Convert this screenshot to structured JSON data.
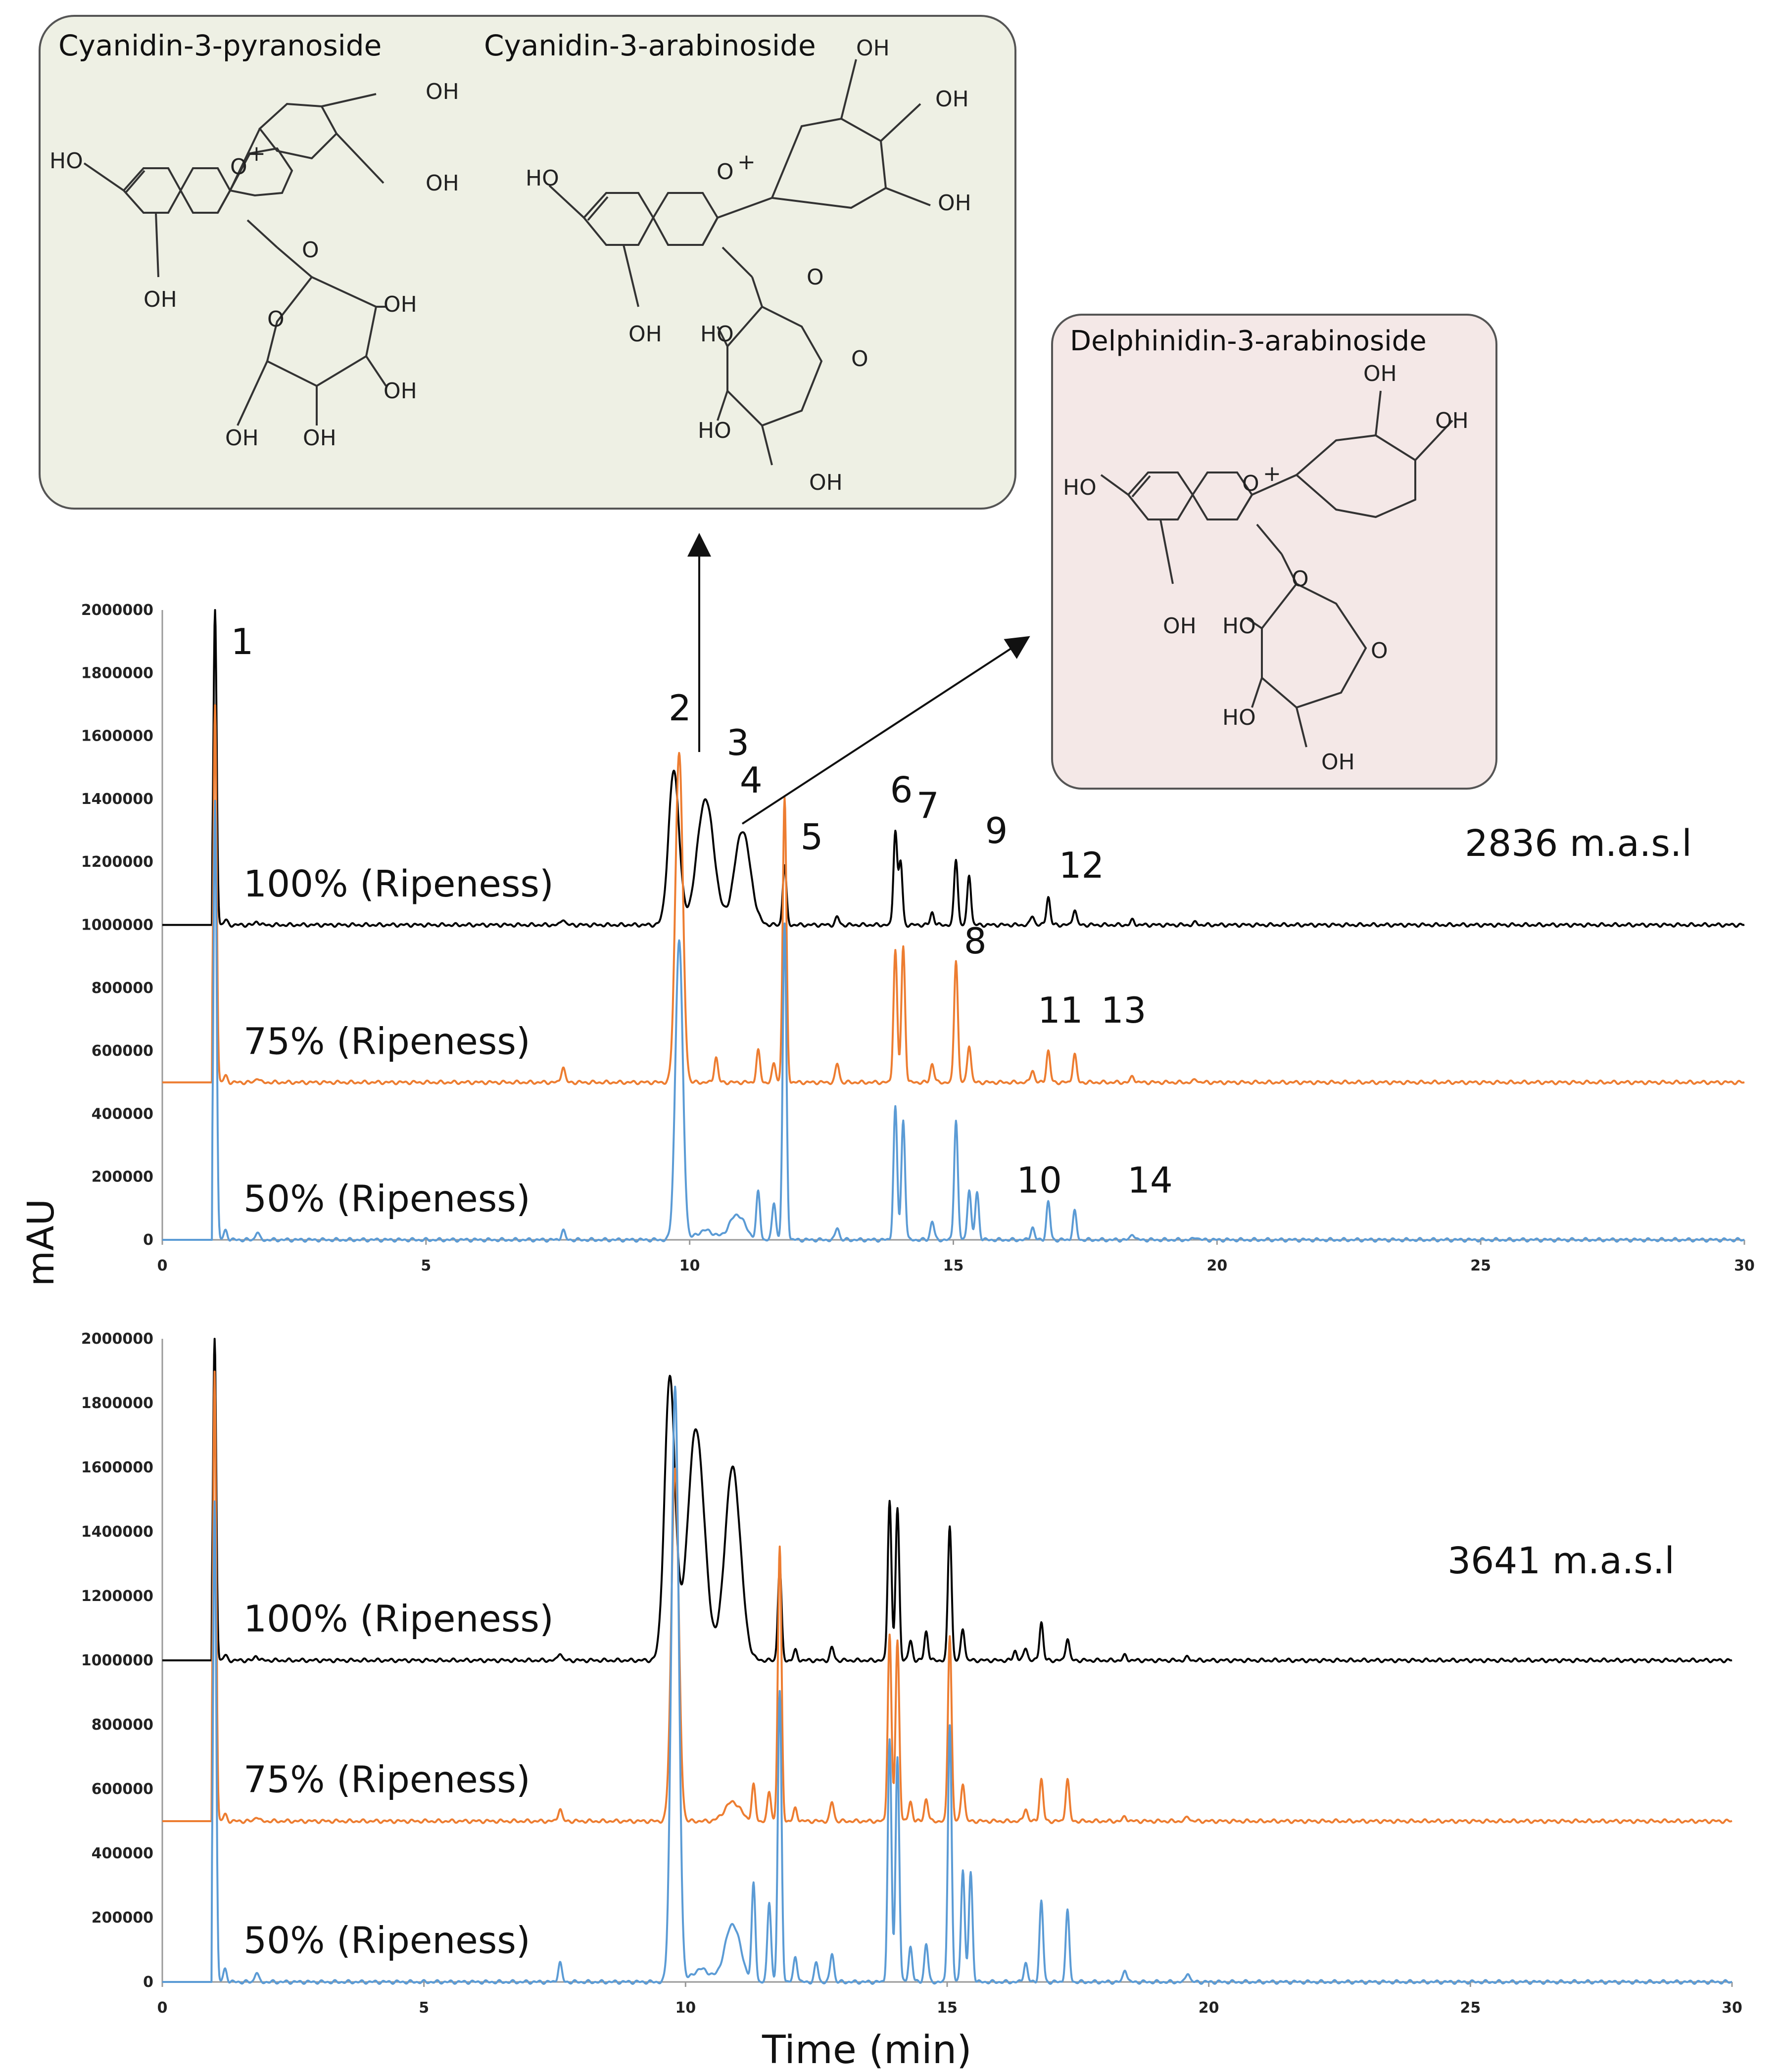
{
  "structures": {
    "cyanidin_pyranoside": "Cyanidin-3-pyranoside",
    "cyanidin_arabinoside": "Cyanidin-3-arabinoside",
    "delphinidin_arabinoside": "Delphinidin-3-arabinoside"
  },
  "atoms": {
    "oh": "OH",
    "ho": "HO",
    "o": "O",
    "plus": "+"
  },
  "colors": {
    "ripeness_100": "#000000",
    "ripeness_75": "#ED7D31",
    "ripeness_50": "#5B9BD5",
    "box_left": "#EEF0E4",
    "box_right": "#F4E8E7"
  },
  "chart_data": [
    {
      "type": "line",
      "title": "2836 m.a.s.l",
      "xlabel": "",
      "ylabel": "mAU",
      "xlim": [
        0,
        30
      ],
      "ylim": [
        0,
        2000000
      ],
      "xticks": [
        "0",
        "5",
        "10",
        "15",
        "20",
        "25",
        "30"
      ],
      "yticks": [
        "0",
        "200000",
        "400000",
        "600000",
        "800000",
        "1000000",
        "1200000",
        "1400000",
        "1600000",
        "1800000",
        "2000000"
      ],
      "series": [
        {
          "name": "100% (Ripeness)",
          "color": "#000000",
          "baseline": 1000000,
          "peaks": [
            [
              1.0,
              1000000
            ],
            [
              1.2,
              15000
            ],
            [
              1.8,
              12000
            ],
            [
              7.6,
              20000
            ],
            [
              9.7,
              490000
            ],
            [
              10.3,
              400000
            ],
            [
              11.0,
              300000
            ],
            [
              11.8,
              190000
            ],
            [
              12.8,
              25000
            ],
            [
              13.9,
              300000
            ],
            [
              14.0,
              200000
            ],
            [
              14.6,
              40000
            ],
            [
              15.05,
              210000
            ],
            [
              15.3,
              160000
            ],
            [
              16.5,
              30000
            ],
            [
              16.8,
              90000
            ],
            [
              17.3,
              50000
            ],
            [
              18.4,
              15000
            ],
            [
              19.6,
              8000
            ]
          ]
        },
        {
          "name": "75% (Ripeness)",
          "color": "#ED7D31",
          "baseline": 500000,
          "peaks": [
            [
              1.0,
              1200000
            ],
            [
              1.2,
              20000
            ],
            [
              1.8,
              15000
            ],
            [
              7.6,
              50000
            ],
            [
              9.8,
              1050000
            ],
            [
              10.5,
              80000
            ],
            [
              11.3,
              100000
            ],
            [
              11.6,
              60000
            ],
            [
              11.8,
              900000
            ],
            [
              12.8,
              60000
            ],
            [
              13.9,
              420000
            ],
            [
              14.05,
              430000
            ],
            [
              14.6,
              60000
            ],
            [
              15.05,
              390000
            ],
            [
              15.3,
              120000
            ],
            [
              16.5,
              40000
            ],
            [
              16.8,
              100000
            ],
            [
              17.3,
              90000
            ],
            [
              18.4,
              20000
            ],
            [
              19.6,
              10000
            ]
          ]
        },
        {
          "name": "50% (Ripeness)",
          "color": "#5B9BD5",
          "baseline": 0,
          "peaks": [
            [
              1.0,
              1400000
            ],
            [
              1.2,
              30000
            ],
            [
              1.8,
              25000
            ],
            [
              7.6,
              30000
            ],
            [
              9.8,
              950000
            ],
            [
              10.3,
              30000
            ],
            [
              10.9,
              80000
            ],
            [
              11.3,
              150000
            ],
            [
              11.6,
              120000
            ],
            [
              11.8,
              1000000
            ],
            [
              12.8,
              40000
            ],
            [
              13.9,
              420000
            ],
            [
              14.05,
              380000
            ],
            [
              14.6,
              60000
            ],
            [
              15.05,
              380000
            ],
            [
              15.3,
              160000
            ],
            [
              15.45,
              150000
            ],
            [
              16.5,
              40000
            ],
            [
              16.8,
              120000
            ],
            [
              17.3,
              90000
            ],
            [
              18.4,
              20000
            ],
            [
              19.6,
              10000
            ]
          ]
        }
      ],
      "peak_labels": [
        {
          "text": "1",
          "x": 1.3,
          "y": 1860000
        },
        {
          "text": "2",
          "x": 9.6,
          "y": 1650000
        },
        {
          "text": "3",
          "x": 10.7,
          "y": 1540000
        },
        {
          "text": "4",
          "x": 10.95,
          "y": 1420000
        },
        {
          "text": "5",
          "x": 12.1,
          "y": 1240000
        },
        {
          "text": "6",
          "x": 13.8,
          "y": 1390000
        },
        {
          "text": "7",
          "x": 14.3,
          "y": 1340000
        },
        {
          "text": "8",
          "x": 15.2,
          "y": 910000
        },
        {
          "text": "9",
          "x": 15.6,
          "y": 1260000
        },
        {
          "text": "10",
          "x": 16.2,
          "y": 150000
        },
        {
          "text": "11",
          "x": 16.6,
          "y": 690000
        },
        {
          "text": "12",
          "x": 17.0,
          "y": 1150000
        },
        {
          "text": "13",
          "x": 17.8,
          "y": 690000
        },
        {
          "text": "14",
          "x": 18.3,
          "y": 150000
        }
      ]
    },
    {
      "type": "line",
      "title": "3641 m.a.s.l",
      "xlabel": "Time (min)",
      "ylabel": "",
      "xlim": [
        0,
        30
      ],
      "ylim": [
        0,
        2000000
      ],
      "xticks": [
        "0",
        "5",
        "10",
        "15",
        "20",
        "25",
        "30"
      ],
      "yticks": [
        "0",
        "200000",
        "400000",
        "600000",
        "800000",
        "1000000",
        "1200000",
        "1400000",
        "1600000",
        "1800000",
        "2000000"
      ],
      "series": [
        {
          "name": "100% (Ripeness)",
          "color": "#000000",
          "baseline": 1000000,
          "peaks": [
            [
              1.0,
              1000000
            ],
            [
              1.2,
              15000
            ],
            [
              1.8,
              15000
            ],
            [
              7.6,
              25000
            ],
            [
              9.7,
              880000
            ],
            [
              10.2,
              720000
            ],
            [
              10.9,
              600000
            ],
            [
              11.8,
              290000
            ],
            [
              12.1,
              30000
            ],
            [
              12.8,
              40000
            ],
            [
              13.9,
              500000
            ],
            [
              14.05,
              470000
            ],
            [
              14.3,
              60000
            ],
            [
              14.6,
              90000
            ],
            [
              15.05,
              420000
            ],
            [
              15.3,
              100000
            ],
            [
              16.3,
              30000
            ],
            [
              16.5,
              40000
            ],
            [
              16.8,
              120000
            ],
            [
              17.3,
              70000
            ],
            [
              18.4,
              15000
            ],
            [
              19.6,
              10000
            ]
          ]
        },
        {
          "name": "75% (Ripeness)",
          "color": "#ED7D31",
          "baseline": 500000,
          "peaks": [
            [
              1.0,
              1400000
            ],
            [
              1.2,
              20000
            ],
            [
              1.8,
              15000
            ],
            [
              7.6,
              40000
            ],
            [
              9.8,
              1100000
            ],
            [
              10.9,
              60000
            ],
            [
              11.3,
              110000
            ],
            [
              11.6,
              90000
            ],
            [
              11.8,
              850000
            ],
            [
              12.1,
              40000
            ],
            [
              12.8,
              60000
            ],
            [
              13.9,
              580000
            ],
            [
              14.05,
              560000
            ],
            [
              14.3,
              60000
            ],
            [
              14.6,
              70000
            ],
            [
              15.05,
              580000
            ],
            [
              15.3,
              120000
            ],
            [
              16.5,
              40000
            ],
            [
              16.8,
              130000
            ],
            [
              17.3,
              130000
            ],
            [
              18.4,
              15000
            ],
            [
              19.6,
              15000
            ]
          ]
        },
        {
          "name": "50% (Ripeness)",
          "color": "#5B9BD5",
          "baseline": 0,
          "peaks": [
            [
              1.0,
              1500000
            ],
            [
              1.2,
              40000
            ],
            [
              1.8,
              30000
            ],
            [
              7.6,
              60000
            ],
            [
              9.8,
              1850000
            ],
            [
              10.3,
              40000
            ],
            [
              10.9,
              180000
            ],
            [
              11.3,
              300000
            ],
            [
              11.6,
              250000
            ],
            [
              11.8,
              900000
            ],
            [
              12.1,
              80000
            ],
            [
              12.5,
              60000
            ],
            [
              12.8,
              90000
            ],
            [
              13.9,
              750000
            ],
            [
              14.05,
              700000
            ],
            [
              14.3,
              110000
            ],
            [
              14.6,
              120000
            ],
            [
              15.05,
              800000
            ],
            [
              15.3,
              350000
            ],
            [
              15.45,
              340000
            ],
            [
              16.5,
              60000
            ],
            [
              16.8,
              250000
            ],
            [
              17.3,
              220000
            ],
            [
              18.4,
              40000
            ],
            [
              19.6,
              30000
            ]
          ]
        }
      ]
    }
  ]
}
